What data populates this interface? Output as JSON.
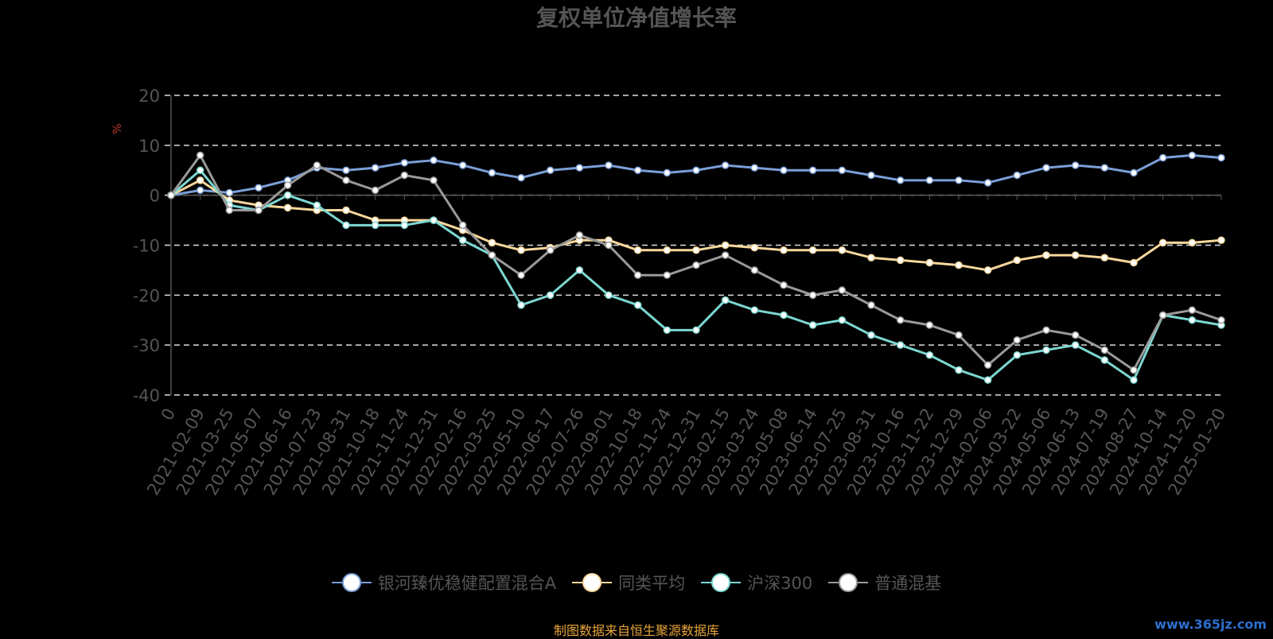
{
  "chart_data": {
    "type": "line",
    "title": "复权单位净值增长率",
    "ylabel": "%",
    "ylim": [
      -40,
      20
    ],
    "yticks": [
      20,
      10,
      0,
      -10,
      -20,
      -30,
      -40
    ],
    "grid": true,
    "legend_position": "bottom",
    "x_categories": [
      "0",
      "2021-02-09",
      "2021-03-25",
      "2021-05-07",
      "2021-06-16",
      "2021-07-23",
      "2021-08-31",
      "2021-10-18",
      "2021-11-24",
      "2021-12-31",
      "2022-02-16",
      "2022-03-25",
      "2022-05-10",
      "2022-06-17",
      "2022-07-26",
      "2022-09-01",
      "2022-10-18",
      "2022-11-24",
      "2022-12-31",
      "2023-02-15",
      "2023-03-24",
      "2023-05-08",
      "2023-06-14",
      "2023-07-25",
      "2023-08-31",
      "2023-10-16",
      "2023-11-22",
      "2023-12-29",
      "2024-02-06",
      "2024-03-22",
      "2024-05-06",
      "2024-06-13",
      "2024-07-19",
      "2024-08-27",
      "2024-10-14",
      "2024-11-20",
      "2025-01-20"
    ],
    "series": [
      {
        "name": "银河臻优稳健配置混合A",
        "color": "#7b9fd8",
        "values": [
          0,
          1,
          0.5,
          1.5,
          3,
          5.5,
          5,
          5.5,
          6.5,
          7,
          6,
          4.5,
          3.5,
          5,
          5.5,
          6,
          5,
          4.5,
          5,
          6,
          5.5,
          5,
          5,
          5,
          4,
          3,
          3,
          3,
          2.5,
          4,
          5.5,
          6,
          5.5,
          4.5,
          7.5,
          8,
          7.5
        ]
      },
      {
        "name": "同类平均",
        "color": "#f8d79c",
        "values": [
          0,
          3,
          -1,
          -2,
          -2.5,
          -3,
          -3,
          -5,
          -5,
          -5,
          -7,
          -9.5,
          -11,
          -10.5,
          -9,
          -9,
          -11,
          -11,
          -11,
          -10,
          -10.5,
          -11,
          -11,
          -11,
          -12.5,
          -13,
          -13.5,
          -14,
          -15,
          -13,
          -12,
          -12,
          -12.5,
          -13.5,
          -9.5,
          -9.5,
          -9
        ]
      },
      {
        "name": "沪深300",
        "color": "#7cd7d1",
        "values": [
          0,
          5,
          -2,
          -3,
          0,
          -2,
          -6,
          -6,
          -6,
          -5,
          -9,
          -12,
          -22,
          -20,
          -15,
          -20,
          -22,
          -27,
          -27,
          -21,
          -23,
          -24,
          -26,
          -25,
          -28,
          -30,
          -32,
          -35,
          -37,
          -32,
          -31,
          -30,
          -33,
          -37,
          -24,
          -25,
          -26
        ]
      },
      {
        "name": "普通混基",
        "color": "#9a9a9a",
        "values": [
          0,
          8,
          -3,
          -3,
          2,
          6,
          3,
          1,
          4,
          3,
          -6,
          -12,
          -16,
          -11,
          -8,
          -10,
          -16,
          -16,
          -14,
          -12,
          -15,
          -18,
          -20,
          -19,
          -22,
          -25,
          -26,
          -28,
          -34,
          -29,
          -27,
          -28,
          -31,
          -35,
          -24,
          -23,
          -25
        ]
      }
    ]
  },
  "source_note": "制图数据来自恒生聚源数据库",
  "watermark": "www.365jz.com"
}
